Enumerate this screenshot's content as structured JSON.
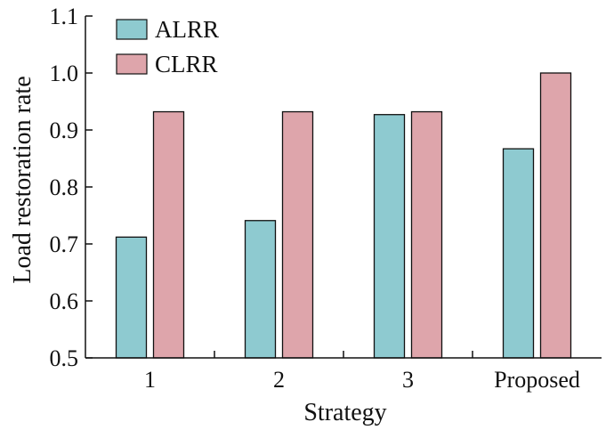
{
  "chart_data": {
    "type": "bar",
    "categories": [
      "1",
      "2",
      "3",
      "Proposed"
    ],
    "series": [
      {
        "name": "ALRR",
        "values": [
          0.712,
          0.741,
          0.927,
          0.867
        ],
        "color": "#8ecad0"
      },
      {
        "name": "CLRR",
        "values": [
          0.932,
          0.932,
          0.932,
          1.0
        ],
        "color": "#dea5ab"
      }
    ],
    "xlabel": "Strategy",
    "ylabel": "Load restoration rate",
    "ylim": [
      0.5,
      1.1
    ],
    "yticks": [
      "0.5",
      "0.6",
      "0.7",
      "0.8",
      "0.9",
      "1.0",
      "1.1"
    ],
    "grid": false,
    "legend_position": "top-left"
  }
}
